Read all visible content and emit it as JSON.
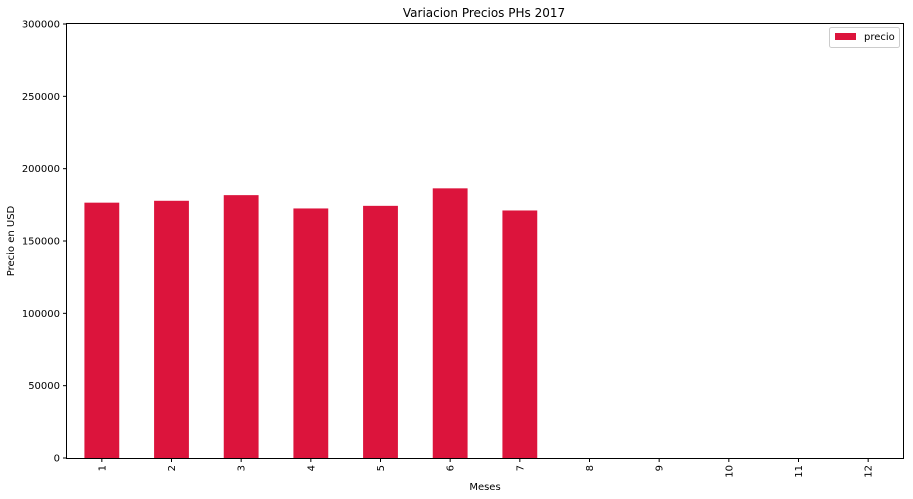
{
  "chart_data": {
    "type": "bar",
    "title": "Variacion Precios PHs 2017",
    "xlabel": "Meses",
    "ylabel": "Precio en USD",
    "categories": [
      "1",
      "2",
      "3",
      "4",
      "5",
      "6",
      "7",
      "8",
      "9",
      "10",
      "11",
      "12"
    ],
    "series": [
      {
        "name": "precio",
        "values": [
          176500,
          177800,
          181700,
          172500,
          174300,
          186400,
          171100,
          null,
          null,
          null,
          null,
          null
        ],
        "color": "#dc143c"
      }
    ],
    "ylim": [
      0,
      300000
    ],
    "yticks": [
      "0",
      "50000",
      "100000",
      "150000",
      "200000",
      "250000",
      "300000"
    ],
    "grid": false,
    "legend": "top-right"
  }
}
